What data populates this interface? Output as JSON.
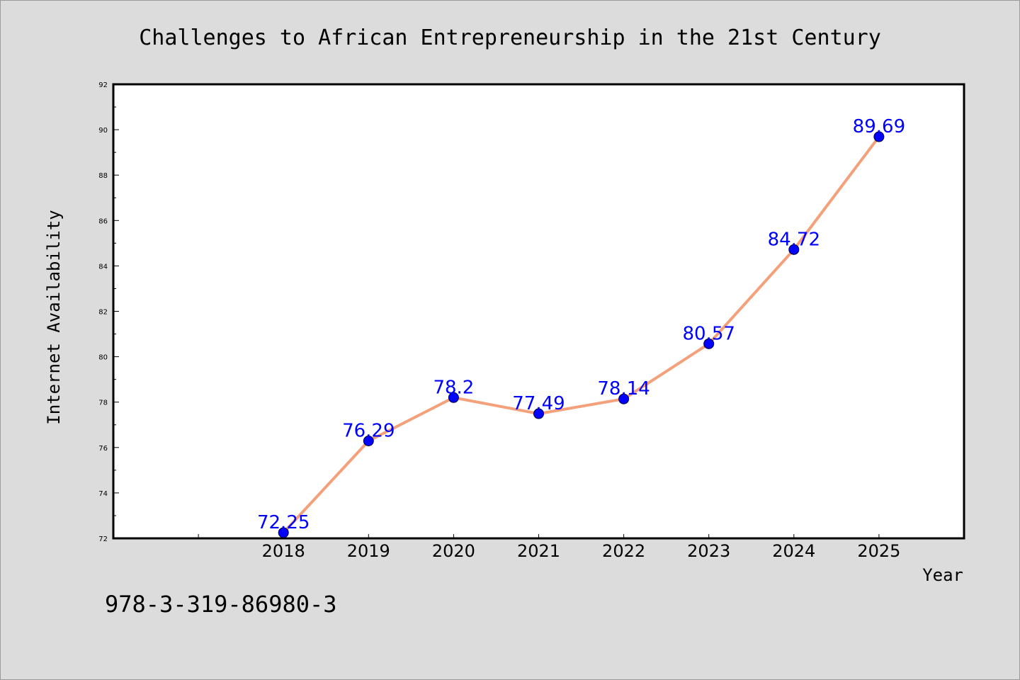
{
  "chart_data": {
    "type": "line",
    "title": "Challenges to African Entrepreneurship in the 21st Century",
    "xlabel": "Year",
    "ylabel": "Internet Availability",
    "x": [
      "2018",
      "2019",
      "2020",
      "2021",
      "2022",
      "2023",
      "2024",
      "2025"
    ],
    "series": [
      {
        "values": [
          72.25,
          76.29,
          78.2,
          77.49,
          78.14,
          80.57,
          84.72,
          89.69
        ]
      }
    ],
    "data_labels": [
      "72.25",
      "76.29",
      "78.2",
      "77.49",
      "78.14",
      "80.57",
      "84.72",
      "89.69"
    ],
    "ylim": [
      72,
      92
    ],
    "yticks": [
      72,
      74,
      76,
      78,
      80,
      82,
      84,
      86,
      88,
      90,
      92
    ],
    "x_range": [
      2016,
      2026
    ],
    "grid": false,
    "line_color": "#f4a07a",
    "marker_color": "#0000ff",
    "label_color": "#0000ff"
  },
  "annotation": "978-3-319-86980-3"
}
